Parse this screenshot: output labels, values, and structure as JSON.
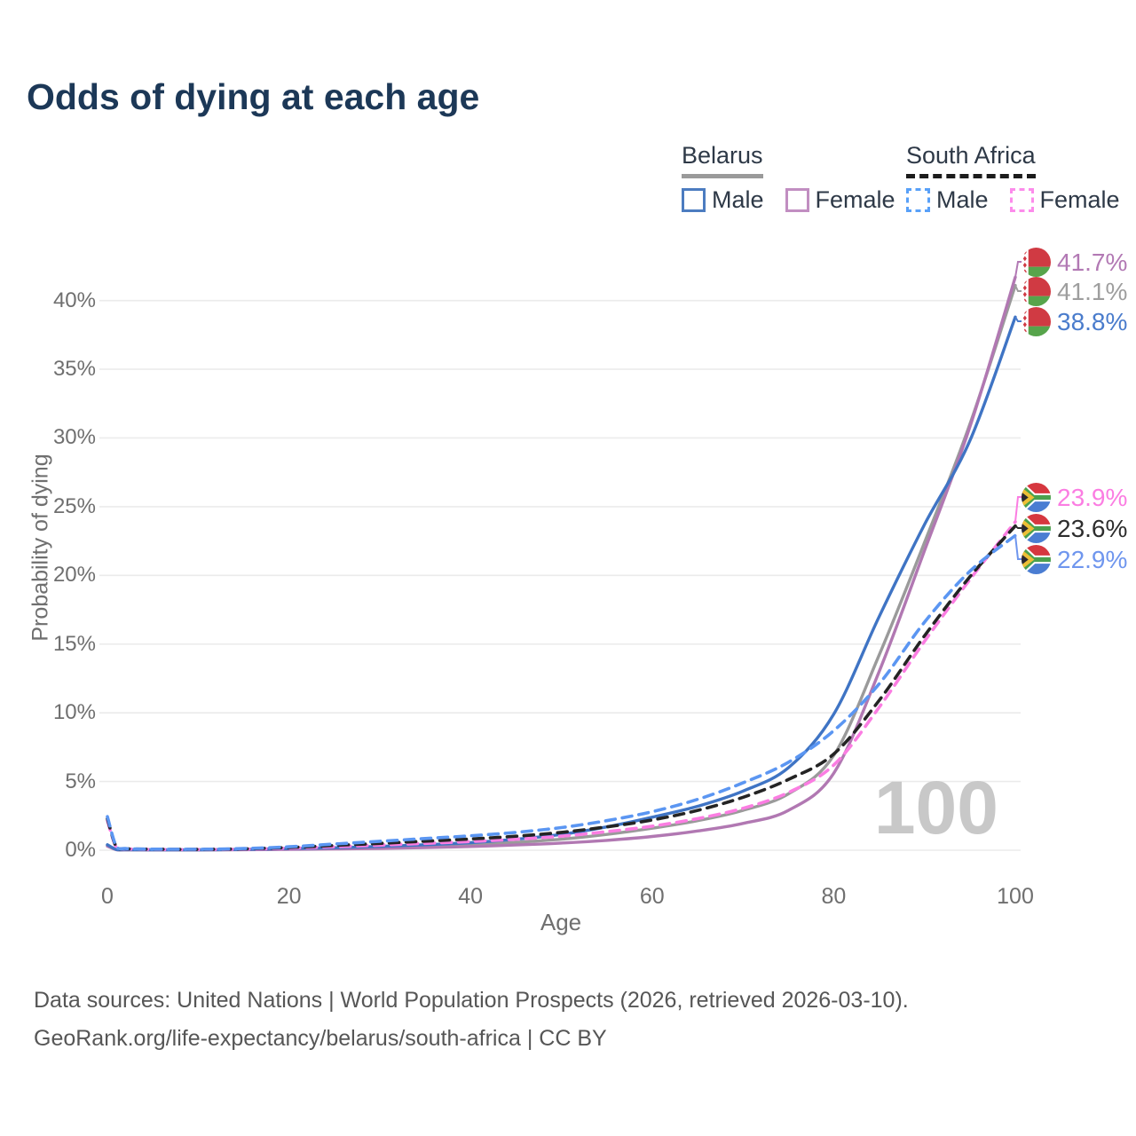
{
  "title": "Odds of dying at each age",
  "legend": {
    "groups": [
      {
        "label": "Belarus",
        "underline_style": "solid",
        "underline_color": "#9a9a9a",
        "items": [
          {
            "label": "Male",
            "swatch_color": "#4c7cc0",
            "dashed": false
          },
          {
            "label": "Female",
            "swatch_color": "#c18ec1",
            "dashed": false
          }
        ]
      },
      {
        "label": "South Africa",
        "underline_style": "dashed",
        "underline_color": "#1c1c1c",
        "items": [
          {
            "label": "Male",
            "swatch_color": "#58a0f8",
            "dashed": true
          },
          {
            "label": "Female",
            "swatch_color": "#fc8ceb",
            "dashed": true
          }
        ]
      }
    ]
  },
  "chart_data": {
    "type": "line",
    "title": "Odds of dying at each age",
    "xlabel": "Age",
    "ylabel": "Probability of dying",
    "xlim": [
      0,
      100
    ],
    "ylim": [
      0,
      43
    ],
    "x_ticks": [
      0,
      20,
      40,
      60,
      80,
      100
    ],
    "y_ticks": [
      "0%",
      "5%",
      "10%",
      "15%",
      "20%",
      "25%",
      "30%",
      "35%",
      "40%"
    ],
    "grid": "horizontal",
    "legend_position": "top-right",
    "watermark": "100",
    "x": [
      0,
      1,
      2,
      5,
      10,
      15,
      20,
      25,
      30,
      35,
      40,
      45,
      50,
      55,
      60,
      65,
      70,
      75,
      80,
      85,
      90,
      95,
      100
    ],
    "series": [
      {
        "name": "Belarus (both sexes)",
        "flag": "belarus",
        "dashed": false,
        "color": "#9a9a9a",
        "end_label": "41.1%",
        "end_label_color": "#9e9e9e",
        "values": [
          0.35,
          0.045,
          0.035,
          0.025,
          0.025,
          0.05,
          0.09,
          0.13,
          0.2,
          0.29,
          0.4,
          0.57,
          0.8,
          1.15,
          1.6,
          2.15,
          2.9,
          4.1,
          6.9,
          14.2,
          22.4,
          31.0,
          41.1
        ]
      },
      {
        "name": "Belarus Female",
        "flag": "belarus",
        "dashed": false,
        "color": "#b178b2",
        "end_label": "41.7%",
        "end_label_color": "#b279b4",
        "values": [
          0.3,
          0.04,
          0.03,
          0.02,
          0.02,
          0.04,
          0.06,
          0.09,
          0.13,
          0.19,
          0.27,
          0.38,
          0.52,
          0.72,
          1.0,
          1.4,
          1.95,
          2.9,
          5.6,
          13.0,
          21.8,
          30.8,
          41.7
        ]
      },
      {
        "name": "Belarus Male",
        "flag": "belarus",
        "dashed": false,
        "color": "#3f74c4",
        "end_label": "38.8%",
        "end_label_color": "#4a7ccc",
        "values": [
          0.4,
          0.05,
          0.04,
          0.03,
          0.03,
          0.06,
          0.12,
          0.18,
          0.28,
          0.4,
          0.55,
          0.8,
          1.15,
          1.7,
          2.4,
          3.2,
          4.3,
          6.0,
          9.9,
          17.0,
          23.7,
          29.8,
          38.8
        ]
      },
      {
        "name": "South Africa Female",
        "flag": "south-africa",
        "dashed": true,
        "color": "#fb7de2",
        "end_label": "23.9%",
        "end_label_color": "#fb7de2",
        "values": [
          2.15,
          0.2,
          0.1,
          0.06,
          0.05,
          0.08,
          0.15,
          0.25,
          0.37,
          0.5,
          0.63,
          0.8,
          1.02,
          1.35,
          1.75,
          2.3,
          3.05,
          4.2,
          6.2,
          10.4,
          15.2,
          19.7,
          23.9
        ]
      },
      {
        "name": "South Africa (both sexes)",
        "flag": "south-africa",
        "dashed": true,
        "color": "#242424",
        "end_label": "23.6%",
        "end_label_color": "#2d2d2d",
        "values": [
          2.3,
          0.22,
          0.11,
          0.07,
          0.06,
          0.1,
          0.2,
          0.35,
          0.5,
          0.66,
          0.82,
          1.02,
          1.3,
          1.7,
          2.2,
          2.9,
          3.85,
          5.15,
          7.0,
          10.9,
          15.6,
          19.9,
          23.6
        ]
      },
      {
        "name": "South Africa Male",
        "flag": "south-africa",
        "dashed": true,
        "color": "#5b96f2",
        "end_label": "22.9%",
        "end_label_color": "#6f96ee",
        "values": [
          2.45,
          0.25,
          0.12,
          0.08,
          0.07,
          0.12,
          0.25,
          0.45,
          0.65,
          0.85,
          1.05,
          1.3,
          1.65,
          2.15,
          2.8,
          3.7,
          4.9,
          6.4,
          8.7,
          12.1,
          16.6,
          20.3,
          22.9
        ]
      }
    ]
  },
  "footer": {
    "line1": "Data sources: United Nations | World Population Prospects (2026, retrieved 2026-03-10).",
    "line2": "GeoRank.org/life-expectancy/belarus/south-africa | CC BY"
  }
}
